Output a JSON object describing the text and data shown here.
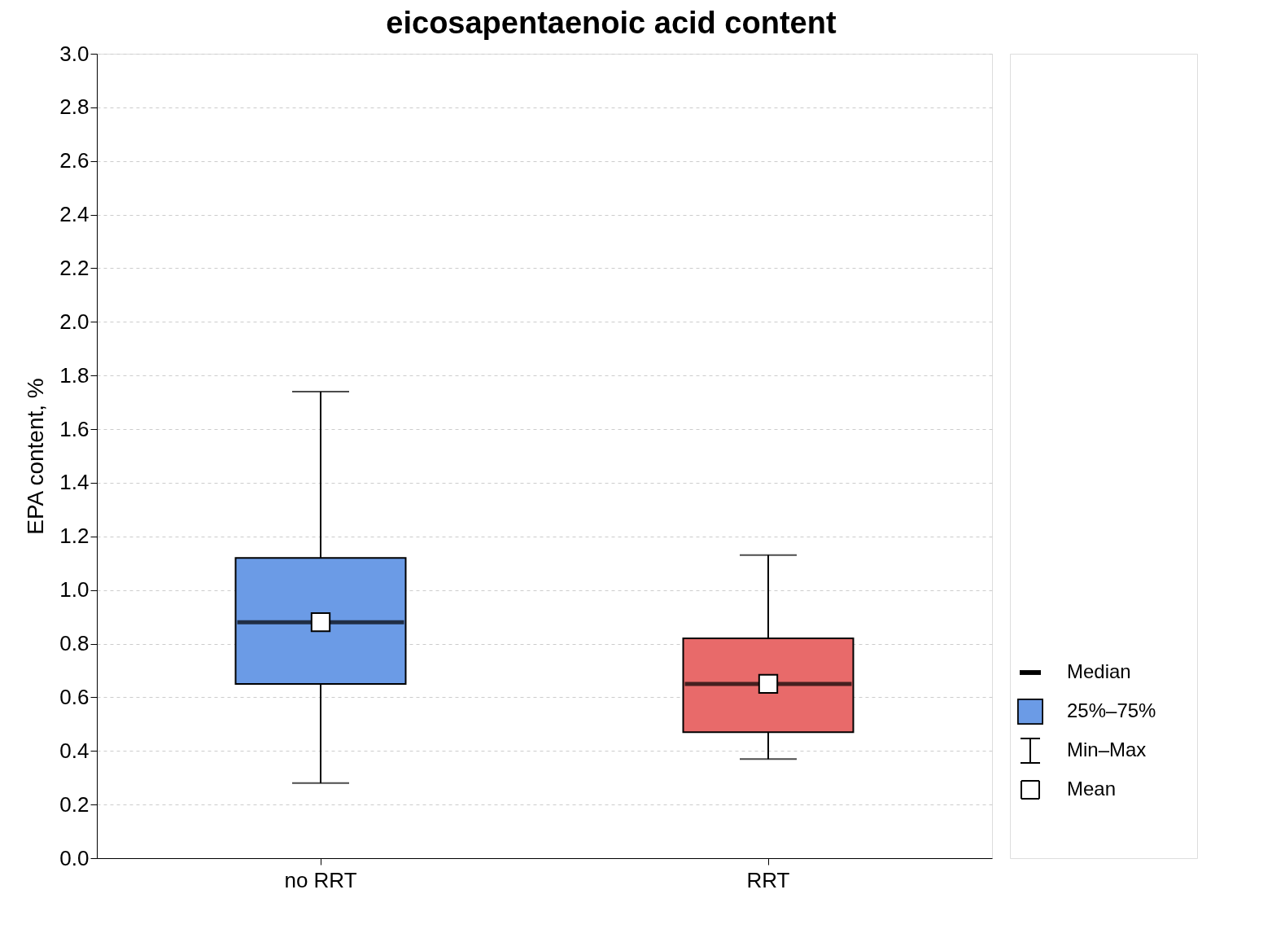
{
  "chart_data": {
    "type": "box",
    "title": "eicosapentaenoic acid content",
    "ylabel": "EPA content, %",
    "categories": [
      "no RRT",
      "RRT"
    ],
    "colors": [
      "#6b9be6",
      "#e86a6a"
    ],
    "boxes": [
      {
        "low": 0.28,
        "q1": 0.65,
        "median": 0.88,
        "q3": 1.12,
        "high": 1.74,
        "mean": 0.88
      },
      {
        "low": 0.37,
        "q1": 0.47,
        "median": 0.65,
        "q3": 0.82,
        "high": 1.13,
        "mean": 0.65
      }
    ],
    "ylim": [
      0,
      3.0
    ],
    "yticks": [
      {
        "value": 0,
        "label": "0.0"
      },
      0.2,
      0.4,
      0.6,
      0.8,
      {
        "value": 1,
        "label": "1.0"
      },
      1.2,
      1.4,
      1.6,
      1.8,
      {
        "value": 2,
        "label": "2.0"
      },
      2.2,
      2.4,
      2.6,
      2.8,
      {
        "value": 3,
        "label": "3.0"
      }
    ],
    "grid": "y",
    "annotations": [
      "Median",
      "25%–75%",
      "Min–Max",
      "Mean"
    ]
  }
}
